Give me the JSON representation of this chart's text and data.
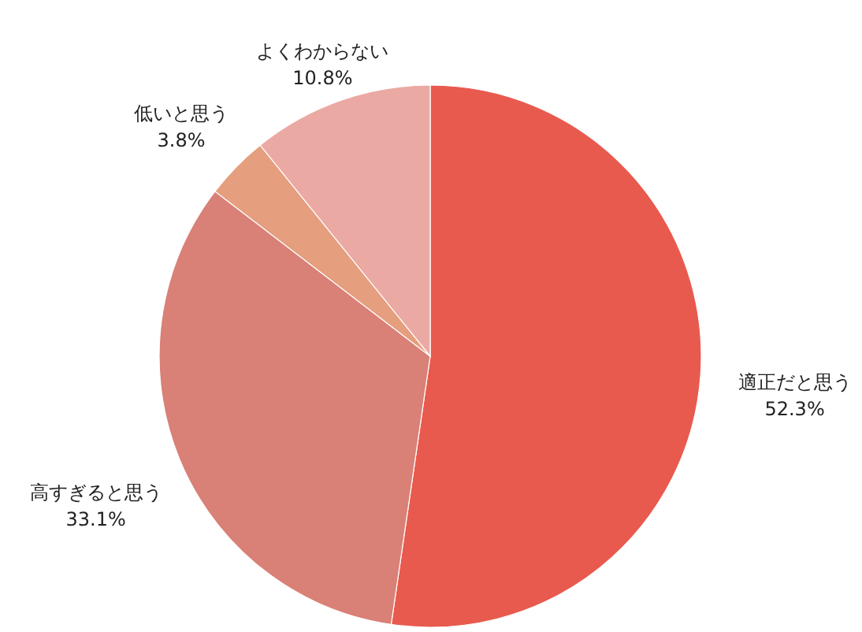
{
  "chart_data": {
    "type": "pie",
    "categories": [
      "適正だと思う",
      "高すぎると思う",
      "低いと思う",
      "よくわからない"
    ],
    "values": [
      52.3,
      33.1,
      3.8,
      10.8
    ],
    "value_labels": [
      "52.3%",
      "33.1%",
      "3.8%",
      "10.8%"
    ],
    "colors": [
      "#e85a4e",
      "#d98077",
      "#e59e7e",
      "#eba9a3"
    ]
  }
}
